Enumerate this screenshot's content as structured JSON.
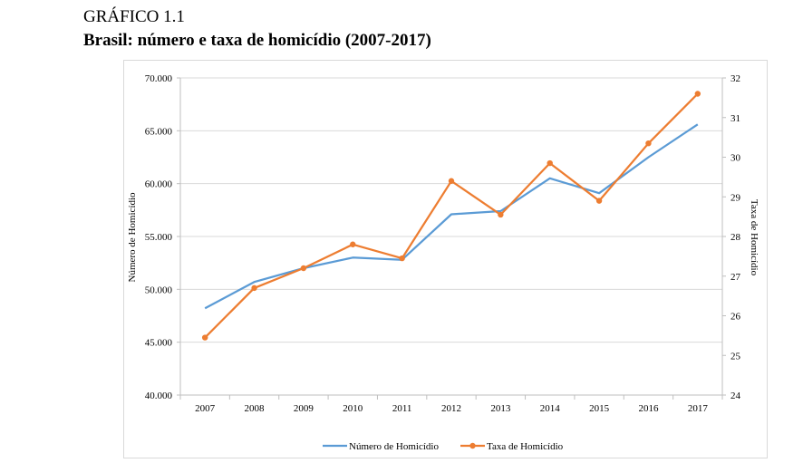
{
  "figure_label": "GRÁFICO 1.1",
  "figure_title": "Brasil: número e taxa de homicídio (2007-2017)",
  "chart_data": {
    "type": "line",
    "x": [
      "2007",
      "2008",
      "2009",
      "2010",
      "2011",
      "2012",
      "2013",
      "2014",
      "2015",
      "2016",
      "2017"
    ],
    "series": [
      {
        "name": "Número de Homicídio",
        "axis": "left",
        "color": "#5b9bd5",
        "values": [
          48200,
          50700,
          52000,
          53000,
          52800,
          57100,
          57400,
          60500,
          59100,
          62500,
          65600
        ]
      },
      {
        "name": "Taxa de Homicídio",
        "axis": "right",
        "color": "#ed7d31",
        "values": [
          25.45,
          26.7,
          27.2,
          27.8,
          27.45,
          29.4,
          28.55,
          29.85,
          28.9,
          30.35,
          31.6
        ]
      }
    ],
    "ylabel": "Número de Homicídio",
    "ylabel_right": "Taxa de Homicídio",
    "ylim": [
      40000,
      70000
    ],
    "ylim_right": [
      24,
      32
    ],
    "yticks": [
      "40.000",
      "45.000",
      "50.000",
      "55.000",
      "60.000",
      "65.000",
      "70.000"
    ],
    "yticks_right": [
      "24",
      "25",
      "26",
      "27",
      "28",
      "29",
      "30",
      "31",
      "32"
    ],
    "grid": true,
    "legend": "bottom"
  }
}
